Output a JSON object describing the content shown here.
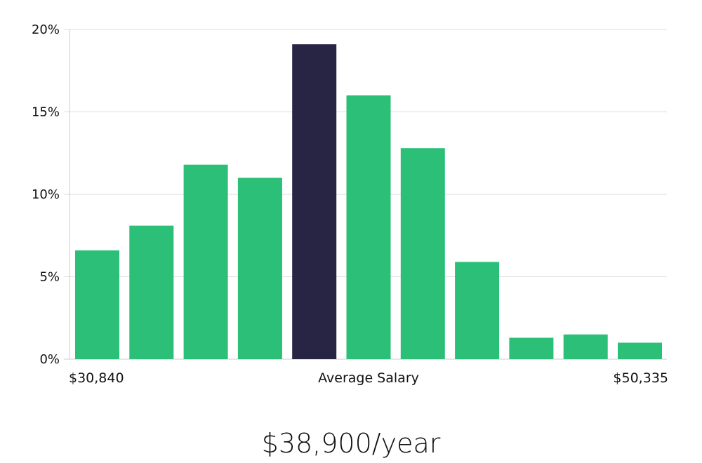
{
  "chart_data": {
    "type": "bar",
    "categories": [
      "1",
      "2",
      "3",
      "4",
      "5",
      "6",
      "7",
      "8",
      "9",
      "10",
      "11"
    ],
    "values": [
      6.6,
      8.1,
      11.8,
      11.0,
      19.1,
      16.0,
      12.8,
      5.9,
      1.3,
      1.5,
      1.0
    ],
    "highlight_index": 4,
    "ylim": [
      0,
      20
    ],
    "yticks": [
      0,
      5,
      10,
      15,
      20
    ],
    "ytick_labels": [
      "0%",
      "5%",
      "10%",
      "15%",
      "20%"
    ],
    "grid": true,
    "x_min_label": "$30,840",
    "x_mid_label": "Average Salary",
    "x_max_label": "$50,335",
    "colors": {
      "bar": "#2bbf77",
      "highlight": "#272444",
      "grid": "#dddddd",
      "axis": "#cccccc"
    }
  },
  "average_salary_text": "$38,900/year"
}
